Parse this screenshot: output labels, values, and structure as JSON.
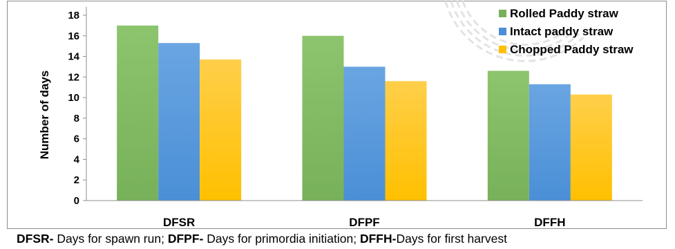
{
  "chart_data": {
    "type": "bar",
    "categories": [
      "DFSR",
      "DFPF",
      "DFFH"
    ],
    "series": [
      {
        "name": "Rolled Paddy straw",
        "values": [
          17.0,
          16.0,
          12.6
        ],
        "color": "#77b15a",
        "color_light": "#8dc46e"
      },
      {
        "name": "Intact paddy straw",
        "values": [
          15.3,
          13.0,
          11.3
        ],
        "color": "#4a8fd6",
        "color_light": "#6aa5e2"
      },
      {
        "name": "Chopped Paddy straw",
        "values": [
          13.7,
          11.6,
          10.3
        ],
        "color": "#ffc000",
        "color_light": "#ffcf4a"
      }
    ],
    "ylabel": "Number of days",
    "xlabel": "",
    "ylim": [
      0,
      18
    ],
    "yticks": [
      0,
      2,
      4,
      6,
      8,
      10,
      12,
      14,
      16,
      18
    ],
    "grid": false,
    "legend_position": "top-right"
  },
  "footnote": {
    "abbr1": "DFSR-",
    "text1": " Days for spawn run; ",
    "abbr2": "DFPF-",
    "text2": " Days for primordia initiation; ",
    "abbr3": "DFFH-",
    "text3": "Days for first harvest"
  }
}
